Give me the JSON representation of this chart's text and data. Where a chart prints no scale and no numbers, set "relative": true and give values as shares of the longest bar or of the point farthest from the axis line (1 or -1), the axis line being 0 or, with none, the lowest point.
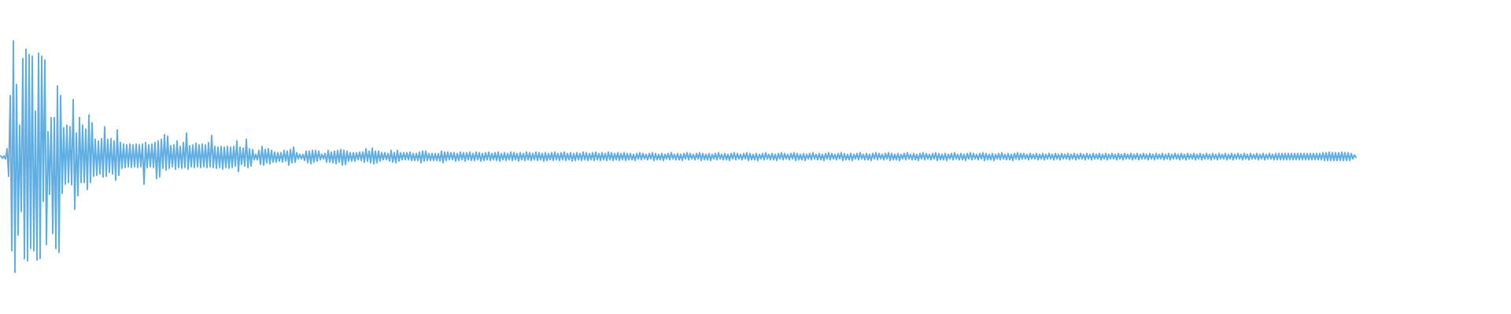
{
  "chart_data": {
    "type": "line",
    "relative": true,
    "color": "#5dade2",
    "categories": [
      null,
      null,
      null,
      null,
      null,
      null,
      null,
      null,
      null,
      null,
      null,
      null,
      null,
      null,
      null,
      null,
      null,
      null,
      null,
      null,
      null,
      null,
      null,
      null,
      null,
      null,
      null,
      null,
      null,
      null,
      null,
      null,
      null,
      null,
      null,
      null,
      null,
      null,
      null,
      null,
      null,
      null,
      null,
      null,
      null,
      null,
      null,
      null,
      null,
      null,
      null,
      null,
      null,
      null,
      null,
      null,
      null,
      null,
      null,
      null,
      null,
      null,
      null,
      null,
      null,
      null,
      null,
      null,
      null,
      null,
      null,
      null,
      null,
      null,
      null,
      null,
      null,
      null,
      null,
      null,
      null,
      null,
      null,
      null,
      null,
      null,
      null,
      null,
      null,
      null,
      null,
      null,
      null,
      null,
      null,
      null,
      null,
      null,
      null,
      null,
      null,
      null,
      null,
      null,
      null,
      null,
      null,
      null,
      null,
      null,
      null,
      null,
      null,
      null,
      null,
      null,
      null,
      null,
      null,
      null,
      null,
      null,
      null,
      null,
      null,
      null,
      null,
      null,
      null,
      null,
      null,
      null,
      null,
      null,
      null,
      null,
      null,
      null,
      null,
      null,
      null,
      null,
      null,
      null,
      null,
      null,
      null,
      null,
      null,
      null,
      null,
      null,
      null,
      null,
      null,
      null,
      null,
      null,
      null,
      null,
      null,
      null,
      null,
      null,
      null,
      null,
      null,
      null,
      null,
      null,
      null,
      null,
      null,
      null,
      null,
      null,
      null,
      null,
      null,
      null,
      null,
      null,
      null,
      null,
      null,
      null,
      null,
      null,
      null,
      null,
      null,
      null,
      null,
      null,
      null,
      null,
      null,
      null,
      null,
      null,
      null,
      null,
      null,
      null,
      null,
      null,
      null,
      null,
      null,
      null,
      null,
      null,
      null,
      null,
      null,
      null,
      null,
      null,
      null,
      null,
      null,
      null,
      null,
      null,
      null,
      null,
      null,
      null,
      null,
      null,
      null,
      null,
      null,
      null,
      null,
      null,
      null,
      null,
      null,
      null,
      null,
      null,
      null,
      null,
      null,
      null,
      null,
      null,
      null,
      null,
      null,
      null,
      null,
      null,
      null,
      null,
      null,
      null,
      null,
      null,
      null,
      null,
      null,
      null,
      null,
      null,
      null,
      null,
      null,
      null,
      null,
      null,
      null,
      null,
      null,
      null,
      null,
      null,
      null,
      null,
      null,
      null,
      null,
      null,
      null,
      null,
      null,
      null,
      null,
      null,
      null,
      null,
      null,
      null,
      null,
      null,
      null,
      null,
      null,
      null,
      null,
      null,
      null,
      null,
      null,
      null,
      null,
      null,
      null,
      null,
      null,
      null,
      null,
      null,
      null,
      null,
      null,
      null,
      null,
      null,
      null,
      null,
      null,
      null,
      null,
      null,
      null,
      null,
      null,
      null,
      null,
      null,
      null,
      null,
      null,
      null,
      null,
      null,
      null,
      null,
      null,
      null,
      null,
      null,
      null,
      null,
      null,
      null,
      null,
      null,
      null,
      null,
      null,
      null,
      null,
      null,
      null,
      null,
      null,
      null,
      null,
      null,
      null,
      null,
      null,
      null,
      null,
      null,
      null,
      null,
      null,
      null,
      null,
      null,
      null,
      null,
      null,
      null,
      null,
      null,
      null,
      null,
      null,
      null,
      null,
      null,
      null,
      null,
      null,
      null,
      null,
      null,
      null,
      null,
      null,
      null,
      null,
      null,
      null,
      null,
      null,
      null,
      null,
      null,
      null,
      null,
      null,
      null,
      null,
      null,
      null,
      null,
      null,
      null,
      null,
      null,
      null,
      null,
      null,
      null,
      null,
      null,
      null,
      null,
      null,
      null,
      null,
      null,
      null,
      null,
      null,
      null,
      null,
      null,
      null,
      null,
      null,
      null,
      null,
      null,
      null,
      null,
      null,
      null,
      null,
      null,
      null,
      null,
      null,
      null,
      null,
      null,
      null,
      null,
      null,
      null,
      null,
      null,
      null,
      null,
      null,
      null,
      null,
      null,
      null,
      null,
      null,
      null,
      null,
      null,
      null,
      null,
      null,
      null,
      null,
      null,
      null,
      null,
      null,
      null,
      null,
      null,
      null,
      null,
      null,
      null,
      null,
      null,
      null,
      null,
      null,
      null,
      null,
      null,
      null,
      null,
      null,
      null,
      null,
      null,
      null,
      null,
      null,
      null,
      null,
      null,
      null,
      null,
      null,
      null,
      null,
      null,
      null,
      null,
      null,
      null,
      null,
      null,
      null,
      null,
      null,
      null,
      null,
      null,
      null,
      null,
      null,
      null,
      null,
      null,
      null,
      null,
      null,
      null,
      null,
      null,
      null,
      null,
      null,
      null,
      null,
      null,
      null,
      null,
      null,
      null,
      null,
      null,
      null,
      null,
      null,
      null,
      null,
      null,
      null,
      null,
      null,
      null,
      null,
      null,
      null,
      null,
      null,
      null,
      null,
      null,
      null,
      null,
      null,
      null,
      null,
      null,
      null,
      null,
      null,
      null,
      null,
      null,
      null,
      null,
      null,
      null,
      null,
      null,
      null,
      null,
      null,
      null,
      null,
      null,
      null,
      null,
      null,
      null,
      null,
      null,
      null,
      null,
      null,
      null,
      null,
      null,
      null,
      null,
      null,
      null,
      null,
      null,
      null,
      null,
      null,
      null,
      null,
      null,
      null,
      null,
      null,
      null,
      null,
      null,
      null,
      null,
      null,
      null,
      null,
      null,
      null,
      null,
      null,
      null,
      null,
      null,
      null,
      null,
      null,
      null,
      null,
      null,
      null,
      null,
      null,
      null,
      null,
      null,
      null,
      null,
      null,
      null,
      null,
      null,
      null,
      null,
      null,
      null,
      null,
      null,
      null,
      null,
      null,
      null,
      null,
      null,
      null,
      null,
      null,
      null,
      null,
      null,
      null,
      null,
      null,
      null,
      null,
      null,
      null,
      null,
      null,
      null,
      null,
      null,
      null,
      null,
      null,
      null,
      null,
      null,
      null,
      null,
      null,
      null,
      null,
      null,
      null,
      null,
      null,
      null,
      null,
      null,
      null,
      null,
      null,
      null,
      null,
      null,
      null,
      null,
      null,
      null,
      null,
      null,
      null,
      null,
      null,
      null,
      null,
      null,
      null,
      null,
      null,
      null,
      null,
      null,
      null,
      null,
      null,
      null,
      null,
      null,
      null,
      null,
      null,
      null,
      null,
      null,
      null,
      null,
      null,
      null,
      null,
      null,
      null,
      null,
      null,
      null,
      null,
      null,
      null,
      null,
      null,
      null,
      null,
      null,
      null,
      null,
      null,
      null,
      null,
      null,
      null,
      null,
      null,
      null,
      null,
      null,
      null,
      null,
      null,
      null,
      null,
      null,
      null,
      null,
      null,
      null,
      null,
      null,
      null,
      null,
      null,
      null,
      null,
      null,
      null,
      null,
      null,
      null,
      null,
      null,
      null,
      null,
      null,
      null,
      null,
      null,
      null,
      null,
      null,
      null,
      null,
      null,
      null,
      null,
      null,
      null,
      null,
      null,
      null,
      null,
      null,
      null,
      null,
      null,
      null,
      null,
      null,
      null,
      null,
      null,
      null,
      null,
      null,
      null,
      null,
      null,
      null,
      null,
      null,
      null,
      null,
      null,
      null,
      null,
      null,
      null,
      null,
      null,
      null,
      null,
      null,
      null,
      null,
      null,
      null,
      null,
      null,
      null,
      null,
      null,
      null,
      null,
      null,
      null,
      null,
      null,
      null,
      null,
      null,
      null,
      null,
      null,
      null,
      null
    ],
    "values": [
      0.503,
      0.493,
      0.503,
      0.49,
      0.534,
      0.415,
      0.764,
      0.093,
      1,
      0,
      0.812,
      0.161,
      0.636,
      0.263,
      0.924,
      0.059,
      0.964,
      0.049,
      0.941,
      0.103,
      0.934,
      0.093,
      0.697,
      0.053,
      0.947,
      0.059,
      0.934,
      0.307,
      0.917,
      0.12,
      0.608,
      0.337,
      0.669,
      0.168,
      0.669,
      0.103,
      0.805,
      0.086,
      0.764,
      0.341,
      0.625,
      0.381,
      0.636,
      0.388,
      0.629,
      0.378,
      0.747,
      0.273,
      0.602,
      0.331,
      0.669,
      0.388,
      0.636,
      0.388,
      0.619,
      0.358,
      0.68,
      0.388,
      0.646,
      0.415,
      0.575,
      0.419,
      0.568,
      0.425,
      0.578,
      0.412,
      0.629,
      0.415,
      0.575,
      0.432,
      0.578,
      0.425,
      0.568,
      0.398,
      0.615,
      0.419,
      0.561,
      0.449,
      0.554,
      0.453,
      0.551,
      0.456,
      0.554,
      0.453,
      0.551,
      0.456,
      0.554,
      0.453,
      0.551,
      0.456,
      0.554,
      0.381,
      0.561,
      0.453,
      0.551,
      0.456,
      0.554,
      0.453,
      0.561,
      0.405,
      0.568,
      0.412,
      0.575,
      0.449,
      0.595,
      0.442,
      0.588,
      0.449,
      0.547,
      0.456,
      0.551,
      0.446,
      0.568,
      0.453,
      0.544,
      0.449,
      0.561,
      0.453,
      0.602,
      0.446,
      0.547,
      0.456,
      0.551,
      0.453,
      0.558,
      0.456,
      0.551,
      0.453,
      0.554,
      0.456,
      0.551,
      0.453,
      0.561,
      0.456,
      0.592,
      0.453,
      0.544,
      0.449,
      0.541,
      0.453,
      0.544,
      0.446,
      0.541,
      0.453,
      0.544,
      0.449,
      0.541,
      0.453,
      0.544,
      0.459,
      0.568,
      0.436,
      0.541,
      0.466,
      0.537,
      0.459,
      0.575,
      0.453,
      0.534,
      0.459,
      0.531,
      0.486,
      0.51,
      0.486,
      0.527,
      0.466,
      0.544,
      0.463,
      0.531,
      0.473,
      0.534,
      0.469,
      0.527,
      0.476,
      0.52,
      0.476,
      0.517,
      0.48,
      0.517,
      0.476,
      0.527,
      0.48,
      0.524,
      0.463,
      0.531,
      0.473,
      0.541,
      0.476,
      0.517,
      0.49,
      0.51,
      0.49,
      0.51,
      0.483,
      0.524,
      0.473,
      0.524,
      0.469,
      0.527,
      0.476,
      0.527,
      0.48,
      0.524,
      0.486,
      0.51,
      0.49,
      0.514,
      0.476,
      0.527,
      0.476,
      0.52,
      0.473,
      0.524,
      0.469,
      0.527,
      0.476,
      0.531,
      0.463,
      0.527,
      0.466,
      0.524,
      0.48,
      0.517,
      0.48,
      0.517,
      0.48,
      0.517,
      0.486,
      0.52,
      0.483,
      0.52,
      0.476,
      0.534,
      0.48,
      0.524,
      0.473,
      0.537,
      0.469,
      0.524,
      0.473,
      0.524,
      0.48,
      0.517,
      0.486,
      0.517,
      0.486,
      0.514,
      0.48,
      0.527,
      0.476,
      0.517,
      0.473,
      0.527,
      0.48,
      0.517,
      0.486,
      0.517,
      0.486,
      0.517,
      0.486,
      0.52,
      0.483,
      0.514,
      0.483,
      0.514,
      0.483,
      0.52,
      0.473,
      0.524,
      0.48,
      0.524,
      0.483,
      0.514,
      0.483,
      0.514,
      0.483,
      0.514,
      0.483,
      0.514,
      0.48,
      0.524,
      0.473,
      0.52,
      0.483,
      0.52,
      0.486,
      0.517,
      0.486,
      0.517,
      0.48,
      0.514,
      0.483,
      0.52,
      0.486,
      0.517,
      0.48,
      0.517,
      0.486,
      0.52,
      0.483,
      0.514,
      0.483,
      0.52,
      0.486,
      0.517,
      0.48,
      0.514,
      0.483,
      0.517,
      0.486,
      0.52,
      0.483,
      0.514,
      0.486,
      0.517,
      0.483,
      0.52,
      0.48,
      0.514,
      0.486,
      0.517,
      0.483,
      0.514,
      0.486,
      0.52,
      0.483,
      0.517,
      0.486,
      0.514,
      0.48,
      0.517,
      0.486,
      0.514,
      0.483,
      0.52,
      0.486,
      0.517,
      0.483,
      0.514,
      0.486,
      0.52,
      0.483,
      0.517,
      0.486,
      0.514,
      0.48,
      0.517,
      0.483,
      0.514,
      0.486,
      0.517,
      0.483,
      0.52,
      0.486,
      0.514,
      0.483,
      0.517,
      0.486,
      0.52,
      0.483,
      0.514,
      0.486,
      0.517,
      0.48,
      0.514,
      0.483,
      0.517,
      0.486,
      0.514,
      0.483,
      0.52,
      0.486,
      0.517,
      0.483,
      0.514,
      0.486,
      0.517,
      0.483,
      0.52,
      0.486,
      0.514,
      0.483,
      0.517,
      0.486,
      0.514,
      0.483,
      0.52,
      0.486,
      0.517,
      0.483,
      0.514,
      0.486,
      0.517,
      0.483,
      0.514,
      0.486,
      0.517,
      0.483,
      0.514,
      0.486,
      0.514,
      0.486,
      0.51,
      0.483,
      0.514,
      0.49,
      0.517,
      0.486,
      0.514,
      0.49,
      0.51,
      0.486,
      0.514,
      0.49,
      0.517,
      0.483,
      0.514,
      0.486,
      0.51,
      0.486,
      0.514,
      0.483,
      0.51,
      0.49,
      0.514,
      0.486,
      0.517,
      0.49,
      0.51,
      0.486,
      0.514,
      0.486,
      0.51,
      0.483,
      0.514,
      0.49,
      0.517,
      0.486,
      0.514,
      0.49,
      0.51,
      0.486,
      0.514,
      0.49,
      0.517,
      0.483,
      0.514,
      0.486,
      0.51,
      0.486,
      0.514,
      0.483,
      0.51,
      0.49,
      0.514,
      0.486,
      0.517,
      0.49,
      0.51,
      0.486,
      0.514,
      0.486,
      0.51,
      0.483,
      0.514,
      0.49,
      0.517,
      0.486,
      0.514,
      0.49,
      0.51,
      0.486,
      0.514,
      0.49,
      0.517,
      0.483,
      0.514,
      0.486,
      0.51,
      0.486,
      0.514,
      0.483,
      0.51,
      0.49,
      0.514,
      0.486,
      0.517,
      0.49,
      0.51,
      0.486,
      0.514,
      0.486,
      0.51,
      0.483,
      0.514,
      0.49,
      0.517,
      0.486,
      0.514,
      0.49,
      0.51,
      0.486,
      0.514,
      0.49,
      0.517,
      0.483,
      0.514,
      0.486,
      0.51,
      0.486,
      0.514,
      0.483,
      0.51,
      0.49,
      0.514,
      0.486,
      0.517,
      0.49,
      0.51,
      0.486,
      0.514,
      0.486,
      0.51,
      0.483,
      0.514,
      0.49,
      0.517,
      0.486,
      0.514,
      0.49,
      0.51,
      0.486,
      0.514,
      0.49,
      0.517,
      0.483,
      0.514,
      0.486,
      0.51,
      0.486,
      0.514,
      0.483,
      0.51,
      0.49,
      0.514,
      0.486,
      0.517,
      0.49,
      0.51,
      0.486,
      0.514,
      0.486,
      0.51,
      0.483,
      0.514,
      0.49,
      0.517,
      0.486,
      0.514,
      0.49,
      0.51,
      0.486,
      0.514,
      0.49,
      0.517,
      0.483,
      0.514,
      0.486,
      0.51,
      0.486,
      0.514,
      0.483,
      0.51,
      0.49,
      0.514,
      0.486,
      0.517,
      0.49,
      0.51,
      0.486,
      0.514,
      0.486,
      0.51,
      0.483,
      0.514,
      0.49,
      0.517,
      0.486,
      0.514,
      0.49,
      0.51,
      0.486,
      0.514,
      0.49,
      0.517,
      0.483,
      0.514,
      0.486,
      0.51,
      0.486,
      0.514,
      0.483,
      0.51,
      0.49,
      0.514,
      0.486,
      0.517,
      0.49,
      0.51,
      0.486,
      0.514,
      0.486,
      0.51,
      0.483,
      0.514,
      0.49,
      0.517,
      0.486,
      0.514,
      0.49,
      0.51,
      0.486,
      0.514,
      0.49,
      0.517,
      0.483,
      0.514,
      0.486,
      0.51,
      0.486,
      0.514,
      0.483,
      0.51,
      0.49,
      0.514,
      0.486,
      0.517,
      0.49,
      0.51,
      0.486,
      0.514,
      0.486,
      0.51,
      0.483,
      0.514,
      0.49,
      0.517,
      0.486,
      0.514,
      0.49,
      0.514,
      0.49,
      0.51,
      0.486,
      0.514,
      0.49,
      0.51,
      0.49,
      0.514,
      0.486,
      0.51,
      0.49,
      0.514,
      0.486,
      0.51,
      0.49,
      0.514,
      0.49,
      0.51,
      0.486,
      0.514,
      0.49,
      0.51,
      0.486,
      0.514,
      0.49,
      0.51,
      0.49,
      0.514,
      0.486,
      0.51,
      0.49,
      0.514,
      0.486,
      0.51,
      0.49,
      0.514,
      0.49,
      0.51,
      0.486,
      0.514,
      0.49,
      0.51,
      0.486,
      0.514,
      0.49,
      0.51,
      0.49,
      0.514,
      0.486,
      0.51,
      0.49,
      0.514,
      0.486,
      0.51,
      0.49,
      0.514,
      0.49,
      0.51,
      0.486,
      0.514,
      0.49,
      0.51,
      0.486,
      0.514,
      0.49,
      0.51,
      0.49,
      0.514,
      0.486,
      0.51,
      0.49,
      0.514,
      0.486,
      0.51,
      0.49,
      0.514,
      0.49,
      0.51,
      0.486,
      0.514,
      0.49,
      0.51,
      0.486,
      0.514,
      0.49,
      0.51,
      0.49,
      0.514,
      0.486,
      0.51,
      0.49,
      0.514,
      0.486,
      0.51,
      0.49,
      0.514,
      0.49,
      0.51,
      0.486,
      0.514,
      0.49,
      0.51,
      0.486,
      0.514,
      0.49,
      0.51,
      0.49,
      0.514,
      0.486,
      0.51,
      0.49,
      0.514,
      0.486,
      0.51,
      0.49,
      0.514,
      0.49,
      0.51,
      0.486,
      0.514,
      0.49,
      0.51,
      0.486,
      0.514,
      0.49,
      0.51,
      0.49,
      0.514,
      0.486,
      0.51,
      0.49,
      0.514,
      0.486,
      0.51,
      0.49,
      0.514,
      0.49,
      0.51,
      0.486,
      0.514,
      0.49,
      0.51,
      0.486,
      0.514,
      0.49,
      0.51,
      0.49,
      0.514,
      0.486,
      0.51,
      0.49,
      0.514,
      0.486,
      0.51,
      0.49,
      0.514,
      0.49,
      0.51,
      0.486,
      0.514,
      0.486,
      0.514,
      0.486,
      0.514,
      0.486,
      0.514,
      0.486,
      0.514,
      0.486,
      0.514,
      0.486,
      0.514,
      0.486,
      0.514,
      0.486,
      0.514,
      0.486,
      0.514,
      0.486,
      0.514,
      0.486,
      0.514,
      0.486,
      0.514,
      0.486,
      0.514,
      0.486,
      0.514,
      0.486,
      0.517,
      0.483,
      0.517,
      0.483,
      0.52,
      0.483,
      0.517,
      0.483,
      0.517,
      0.483,
      0.517,
      0.483,
      0.52,
      0.483,
      0.517,
      0.483,
      0.517,
      0.483,
      0.514,
      0.49,
      0.507,
      0.497
    ]
  }
}
